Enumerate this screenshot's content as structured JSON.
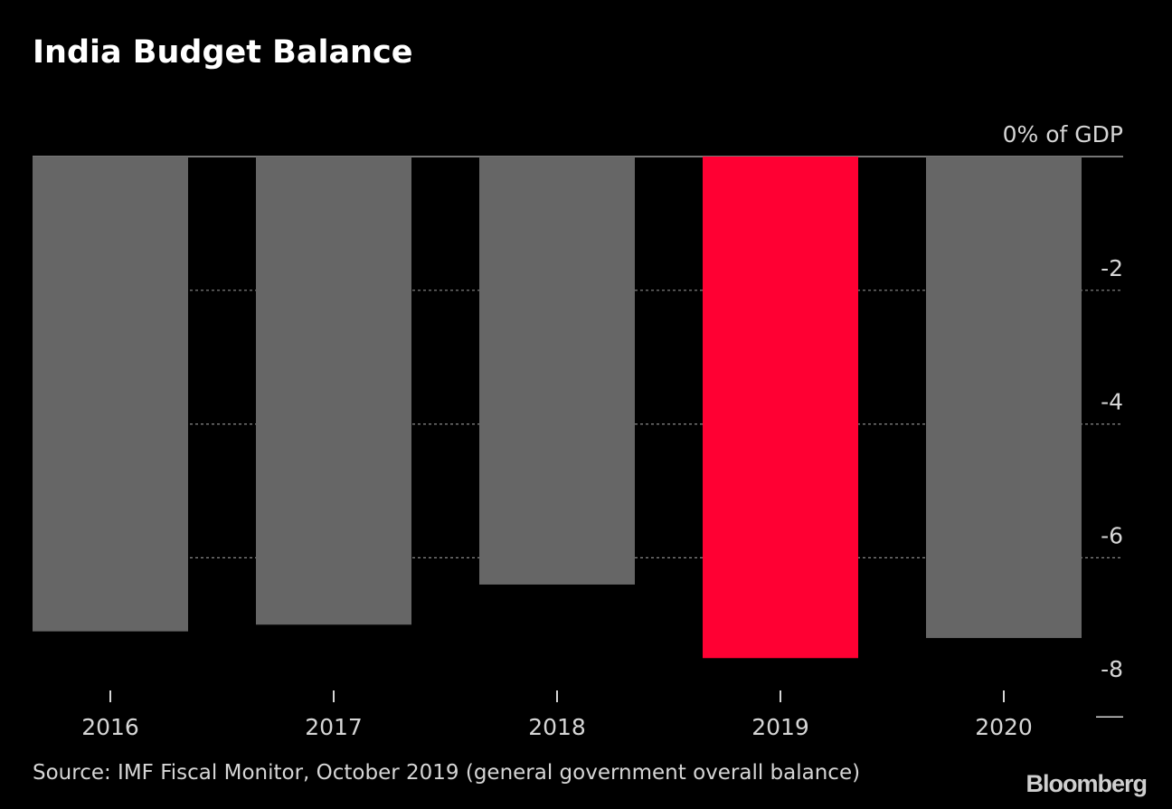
{
  "title": "India Budget Balance",
  "source": "Source: IMF Fiscal Monitor, October 2019 (general government overall balance)",
  "brand": "Bloomberg",
  "colors": {
    "background": "#000000",
    "bar_default": "#666666",
    "bar_highlight": "#ff0033",
    "grid": "#8a8a8a",
    "text": "#d6d6d6"
  },
  "chart_data": {
    "type": "bar",
    "categories": [
      "2016",
      "2017",
      "2018",
      "2019",
      "2020"
    ],
    "values": [
      -7.1,
      -7.0,
      -6.4,
      -7.5,
      -7.2
    ],
    "highlight_index": 3,
    "y_tick_values": [
      0,
      -2,
      -4,
      -6,
      -8
    ],
    "y_tick_labels": [
      "0% of GDP",
      "-2",
      "-4",
      "-6",
      "-8"
    ],
    "ylim": [
      -8,
      0
    ],
    "axis_side": "right",
    "grid": true,
    "title": "India Budget Balance",
    "xlabel": "",
    "ylabel": ""
  }
}
